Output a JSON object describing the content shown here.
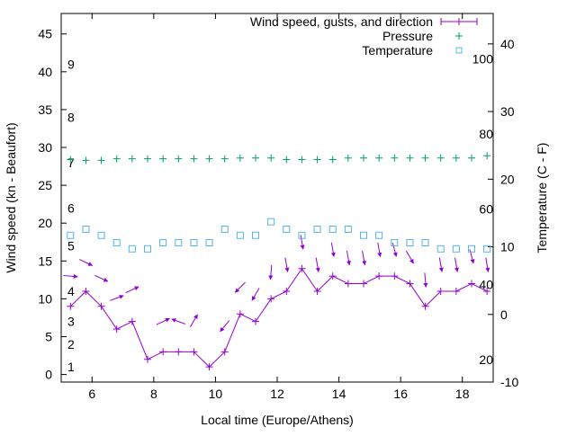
{
  "chart_data": {
    "type": "line",
    "xlabel": "Local time (Europe/Athens)",
    "ylabel": "Wind speed (kn - Beaufort)",
    "y2label": "Temperature (C - F)",
    "xlim": [
      5.0,
      19.0
    ],
    "ylim": [
      -1.0,
      47.7
    ],
    "y2lim": [
      -10,
      44.5
    ],
    "x_ticks": [
      6,
      8,
      10,
      12,
      14,
      16,
      18
    ],
    "y_ticks": [
      0,
      5,
      10,
      15,
      20,
      25,
      30,
      35,
      40,
      45
    ],
    "y2_ticks": [
      -10,
      0,
      10,
      20,
      30,
      40
    ],
    "beaufort_labels": [
      {
        "label": "1",
        "kn": 1
      },
      {
        "label": "2",
        "kn": 4
      },
      {
        "label": "3",
        "kn": 7
      },
      {
        "label": "4",
        "kn": 11
      },
      {
        "label": "5",
        "kn": 17
      },
      {
        "label": "6",
        "kn": 22
      },
      {
        "label": "7",
        "kn": 28
      },
      {
        "label": "8",
        "kn": 34
      },
      {
        "label": "9",
        "kn": 41
      }
    ],
    "fahrenheit_labels": [
      {
        "label": "20",
        "c": -6.7
      },
      {
        "label": "40",
        "c": 4.4
      },
      {
        "label": "60",
        "c": 15.6
      },
      {
        "label": "80",
        "c": 26.7
      },
      {
        "label": "100",
        "c": 37.8
      }
    ],
    "legend": {
      "placement": "top-right",
      "entries": [
        "Wind speed, gusts, and direction",
        "Pressure",
        "Temperature"
      ]
    },
    "x": [
      5.3,
      5.8,
      6.3,
      6.8,
      7.3,
      7.8,
      8.3,
      8.8,
      9.3,
      9.8,
      10.3,
      10.8,
      11.3,
      11.8,
      12.3,
      12.8,
      13.3,
      13.8,
      14.3,
      14.8,
      15.3,
      15.8,
      16.3,
      16.8,
      17.3,
      17.8,
      18.3,
      18.8
    ],
    "series": [
      {
        "name": "Wind speed, gusts, and direction",
        "axis": "y",
        "color": "#9400d3",
        "values": [
          9,
          11,
          9,
          6,
          7,
          2,
          3,
          3,
          3,
          1,
          3,
          8,
          7,
          10,
          11,
          14,
          11,
          13,
          12,
          12,
          13,
          13,
          12,
          9,
          11,
          11,
          12,
          11
        ],
        "gust_values": [
          13,
          14.8,
          12.7,
          10.1,
          11.2,
          null,
          7,
          7,
          7.1,
          null,
          6.4,
          11.5,
          10.6,
          13.5,
          14.5,
          17.5,
          14.5,
          16.5,
          15.4,
          15.4,
          16.5,
          16.5,
          15.5,
          12.5,
          14.5,
          14.5,
          15.6,
          14.5
        ],
        "arrow_heading_deg": [
          -5,
          -25,
          -25,
          20,
          25,
          null,
          25,
          160,
          60,
          null,
          -130,
          -135,
          -120,
          -95,
          -80,
          -80,
          -80,
          -80,
          -80,
          -80,
          -80,
          -75,
          -60,
          -85,
          -80,
          -80,
          -75,
          -80
        ]
      },
      {
        "name": "Pressure",
        "axis": "y",
        "color": "#009e73",
        "values": [
          28.4,
          28.3,
          28.3,
          28.5,
          28.5,
          28.5,
          28.5,
          28.5,
          28.5,
          28.5,
          28.5,
          28.6,
          28.6,
          28.6,
          28.4,
          28.4,
          28.4,
          28.4,
          28.6,
          28.6,
          28.6,
          28.6,
          28.6,
          28.6,
          28.6,
          28.6,
          28.6,
          28.9
        ]
      },
      {
        "name": "Temperature",
        "axis": "y2",
        "color": "#56b4e9",
        "values": [
          11.7,
          12.6,
          11.7,
          10.6,
          9.7,
          9.7,
          10.6,
          10.6,
          10.6,
          10.6,
          12.6,
          11.7,
          11.7,
          13.7,
          12.6,
          11.7,
          12.6,
          12.6,
          12.6,
          11.7,
          11.7,
          10.6,
          10.6,
          10.6,
          9.7,
          9.7,
          9.7,
          9.7
        ]
      }
    ]
  }
}
